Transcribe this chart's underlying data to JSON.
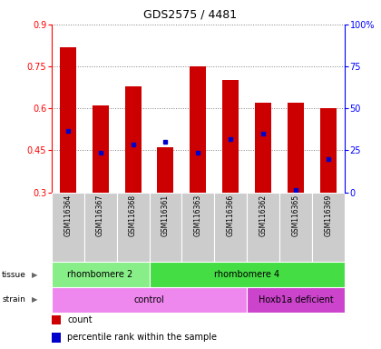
{
  "title": "GDS2575 / 4481",
  "samples": [
    "GSM116364",
    "GSM116367",
    "GSM116368",
    "GSM116361",
    "GSM116363",
    "GSM116366",
    "GSM116362",
    "GSM116365",
    "GSM116369"
  ],
  "bar_bottoms": [
    0.3,
    0.3,
    0.3,
    0.3,
    0.3,
    0.3,
    0.3,
    0.3,
    0.3
  ],
  "bar_tops": [
    0.82,
    0.61,
    0.68,
    0.46,
    0.75,
    0.7,
    0.62,
    0.62,
    0.6
  ],
  "percentile_values": [
    0.52,
    0.44,
    0.47,
    0.48,
    0.44,
    0.49,
    0.51,
    0.31,
    0.42
  ],
  "bar_color": "#cc0000",
  "percentile_color": "#0000cc",
  "ylim_left": [
    0.3,
    0.9
  ],
  "ylim_right": [
    0,
    100
  ],
  "yticks_left": [
    0.3,
    0.45,
    0.6,
    0.75,
    0.9
  ],
  "yticks_right": [
    0,
    25,
    50,
    75,
    100
  ],
  "ytick_labels_left": [
    "0.3",
    "0.45",
    "0.6",
    "0.75",
    "0.9"
  ],
  "ytick_labels_right": [
    "0",
    "25",
    "50",
    "75",
    "100%"
  ],
  "tissue_groups": [
    {
      "label": "rhombomere 2",
      "start": 0,
      "end": 3,
      "color": "#88ee88"
    },
    {
      "label": "rhombomere 4",
      "start": 3,
      "end": 9,
      "color": "#44dd44"
    }
  ],
  "strain_groups": [
    {
      "label": "control",
      "start": 0,
      "end": 6,
      "color": "#ee88ee"
    },
    {
      "label": "Hoxb1a deficient",
      "start": 6,
      "end": 9,
      "color": "#cc44cc"
    }
  ],
  "legend_items": [
    {
      "label": "count",
      "color": "#cc0000"
    },
    {
      "label": "percentile rank within the sample",
      "color": "#0000cc"
    }
  ],
  "sample_bg": "#cccccc",
  "chart_bg": "#ffffff",
  "fig_bg": "#ffffff"
}
